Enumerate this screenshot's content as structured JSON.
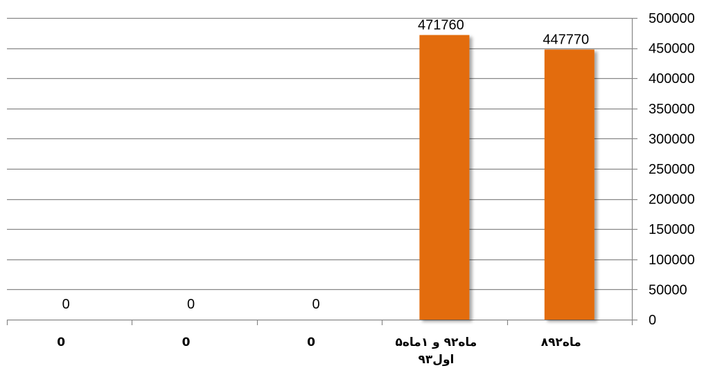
{
  "chart_data": {
    "type": "bar",
    "categories": [
      [
        "0"
      ],
      [
        "0"
      ],
      [
        "0"
      ],
      [
        "۵ماه۹۲ و ۱ماه",
        "اول۹۳"
      ],
      [
        "۸ماه۹۲"
      ]
    ],
    "values": [
      0,
      0,
      0,
      471760,
      447770
    ],
    "data_labels": [
      "0",
      "0",
      "0",
      "471760",
      "447770"
    ],
    "yticks": [
      "0",
      "50000",
      "100000",
      "150000",
      "200000",
      "250000",
      "300000",
      "350000",
      "400000",
      "450000",
      "500000"
    ],
    "ylim": [
      0,
      500000
    ],
    "y_axis_position": "right",
    "grid": true,
    "bar_color": "#E36C09",
    "gridline_color": "#868686"
  }
}
